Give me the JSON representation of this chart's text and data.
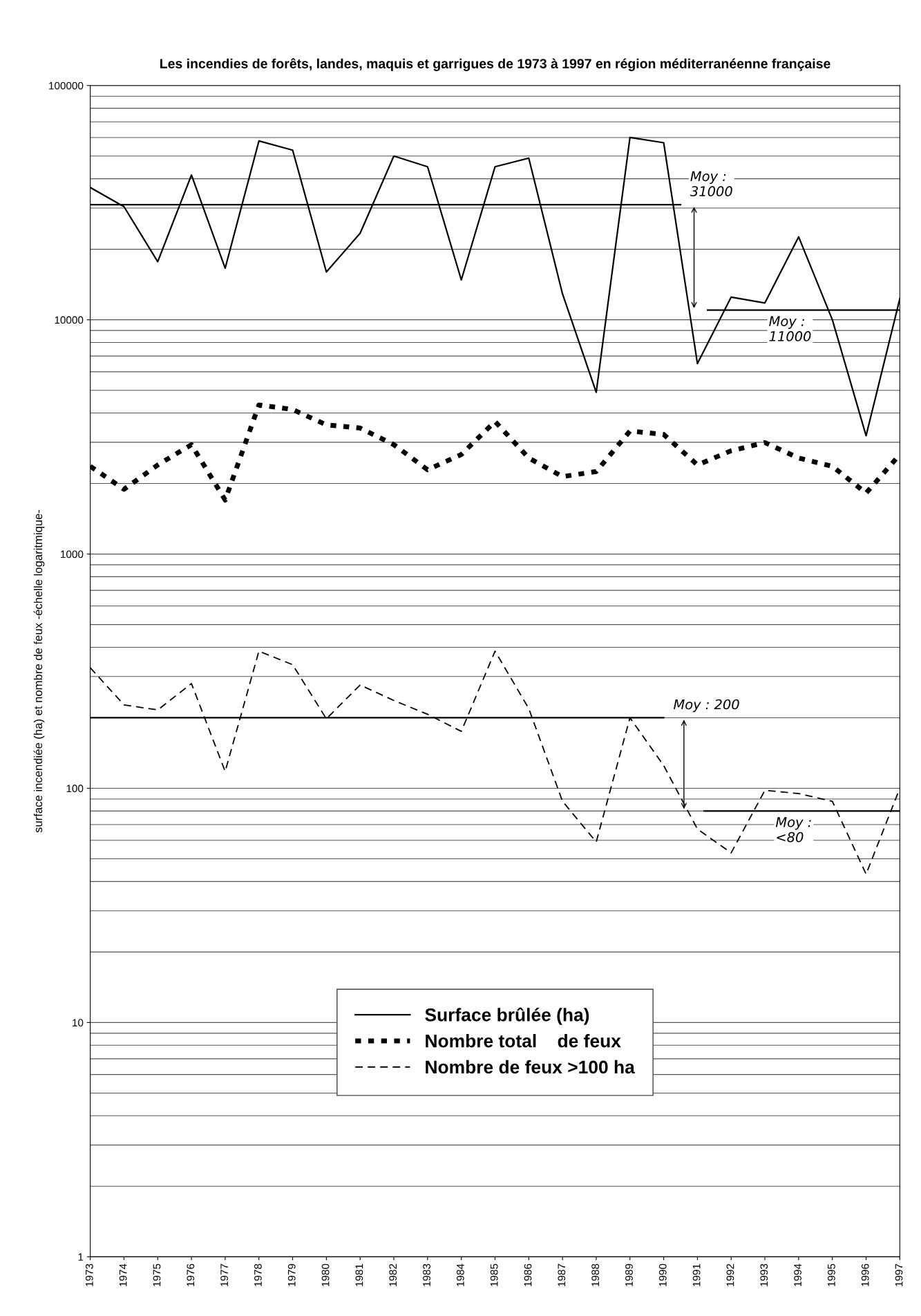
{
  "chart_data": {
    "type": "line",
    "title": "Les incendies de forêts, landes, maquis et garrigues de 1973 à 1997 en région méditerranéenne française",
    "ylabel": "surface incendiée (ha) et nombre de feux -échelle logaritmique-",
    "x": [
      1973,
      1974,
      1975,
      1976,
      1977,
      1978,
      1979,
      1980,
      1981,
      1982,
      1983,
      1984,
      1985,
      1986,
      1987,
      1988,
      1989,
      1990,
      1991,
      1992,
      1993,
      1994,
      1995,
      1996,
      1997
    ],
    "series": [
      {
        "name": "Surface brûlée (ha)",
        "color": "#000000",
        "line_style": "solid",
        "values": [
          36700,
          30400,
          17700,
          41500,
          16600,
          58000,
          53000,
          16000,
          23400,
          50000,
          45000,
          14800,
          45000,
          49000,
          12900,
          4900,
          60000,
          57000,
          6500,
          12500,
          11800,
          22600,
          10000,
          3200,
          12300
        ]
      },
      {
        "name": "Nombre total    de feux",
        "color": "#000000",
        "line_style": "dotted",
        "values": [
          2370,
          1890,
          2400,
          2930,
          1700,
          4330,
          4140,
          3560,
          3450,
          2930,
          2290,
          2660,
          3680,
          2570,
          2140,
          2250,
          3350,
          3240,
          2400,
          2760,
          2990,
          2570,
          2370,
          1820,
          2660
        ]
      },
      {
        "name": "Nombre de feux >100 ha",
        "color": "#000000",
        "line_style": "dashed",
        "values": [
          327,
          227,
          216,
          280,
          118,
          385,
          337,
          198,
          276,
          237,
          207,
          175,
          385,
          219,
          88,
          59,
          200,
          125,
          67,
          53,
          98,
          95,
          88,
          43,
          100
        ]
      },
      {
        "color": "#000000",
        "line_style": "solid",
        "x": [
          1973,
          1990.5
        ],
        "values": [
          31000,
          31000
        ]
      },
      {
        "color": "#000000",
        "line_style": "solid",
        "x": [
          1991.3,
          1997
        ],
        "values": [
          11000,
          11000
        ]
      },
      {
        "color": "#000000",
        "line_style": "solid",
        "x": [
          1973,
          1990
        ],
        "values": [
          200,
          200
        ]
      },
      {
        "color": "#000000",
        "line_style": "solid",
        "x": [
          1991.2,
          1997
        ],
        "values": [
          80,
          80
        ]
      }
    ],
    "annotations": [
      {
        "text": "Moy :\n31000",
        "x": 1990.5,
        "y": 31000
      },
      {
        "text": "Moy :\n11000",
        "x": 1993,
        "y": 11000
      },
      {
        "text": "Moy : 200",
        "x": 1990,
        "y": 200
      },
      {
        "text": "Moy :\n<80",
        "x": 1993.2,
        "y": 80
      }
    ],
    "log": "y",
    "ylim": [
      1,
      100000
    ],
    "yticks": [
      1,
      10,
      100,
      1000,
      10000,
      100000
    ],
    "xlim": [
      1973,
      1997
    ],
    "xticks": [
      1973,
      1974,
      1975,
      1976,
      1977,
      1978,
      1979,
      1980,
      1981,
      1982,
      1983,
      1984,
      1985,
      1986,
      1987,
      1988,
      1989,
      1990,
      1991,
      1992,
      1993,
      1994,
      1995,
      1996,
      1997
    ],
    "grid": "y",
    "legend": "bottom",
    "marker": "none"
  }
}
